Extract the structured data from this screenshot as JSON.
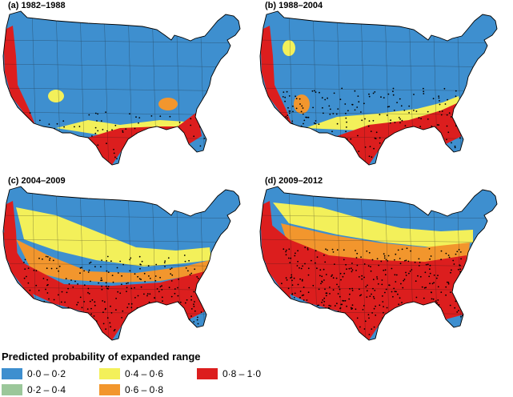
{
  "figure": {
    "panels": [
      {
        "id": "a",
        "label": "(a)  1982–1988",
        "level": 0
      },
      {
        "id": "b",
        "label": "(b)  1988–2004",
        "level": 1
      },
      {
        "id": "c",
        "label": "(c)  2004–2009",
        "level": 2
      },
      {
        "id": "d",
        "label": "(d)  2009–2012",
        "level": 3
      }
    ]
  },
  "legend": {
    "title": "Predicted probability of expanded range",
    "items": [
      {
        "label": "0·0 – 0·2",
        "color": "#3e8fcf"
      },
      {
        "label": "0·2 – 0·4",
        "color": "#9bc79a"
      },
      {
        "label": "0·4 – 0·6",
        "color": "#f3f05a"
      },
      {
        "label": "0·6 – 0·8",
        "color": "#f2962d"
      },
      {
        "label": "0·8 – 1·0",
        "color": "#dc1e1e"
      }
    ]
  }
}
